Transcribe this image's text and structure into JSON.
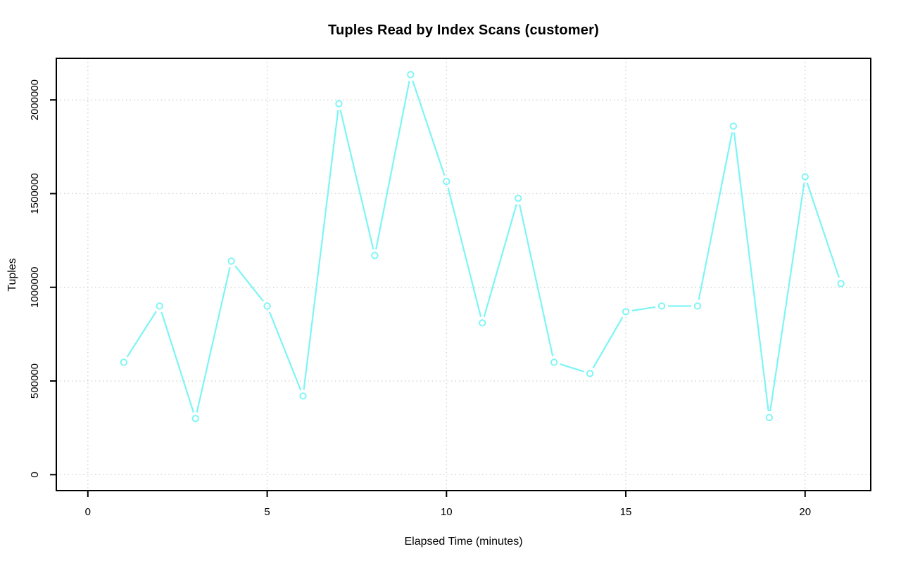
{
  "chart_data": {
    "type": "line",
    "title": "Tuples Read by Index Scans (customer)",
    "xlabel": "Elapsed Time (minutes)",
    "ylabel": "Tuples",
    "x": [
      1,
      2,
      3,
      4,
      5,
      6,
      7,
      8,
      9,
      10,
      11,
      12,
      13,
      14,
      15,
      16,
      17,
      18,
      19,
      20,
      21
    ],
    "values": [
      600000,
      900000,
      300000,
      1140000,
      900000,
      420000,
      1980000,
      1170000,
      2135000,
      1565000,
      810000,
      1475000,
      600000,
      540000,
      870000,
      900000,
      900000,
      1860000,
      305000,
      1590000,
      1020000
    ],
    "series": [
      {
        "name": "customer",
        "values": [
          600000,
          900000,
          300000,
          1140000,
          900000,
          420000,
          1980000,
          1170000,
          2135000,
          1565000,
          810000,
          1475000,
          600000,
          540000,
          870000,
          900000,
          900000,
          1860000,
          305000,
          1590000,
          1020000
        ]
      }
    ],
    "x_ticks": [
      0,
      5,
      10,
      15,
      20
    ],
    "y_ticks": [
      0,
      500000,
      1000000,
      1500000,
      2000000
    ],
    "xlim": [
      -0.88,
      21.83
    ],
    "ylim": [
      -85000,
      2222000
    ],
    "grid": "dotted",
    "legend": "none",
    "marker": "open-circle",
    "line_type": "b",
    "colors": {
      "line": "#7DF5F5",
      "marker": "#7DF5F5",
      "gridline": "#D4D4D4",
      "axis": "#000000",
      "background": "#FFFFFF"
    }
  }
}
